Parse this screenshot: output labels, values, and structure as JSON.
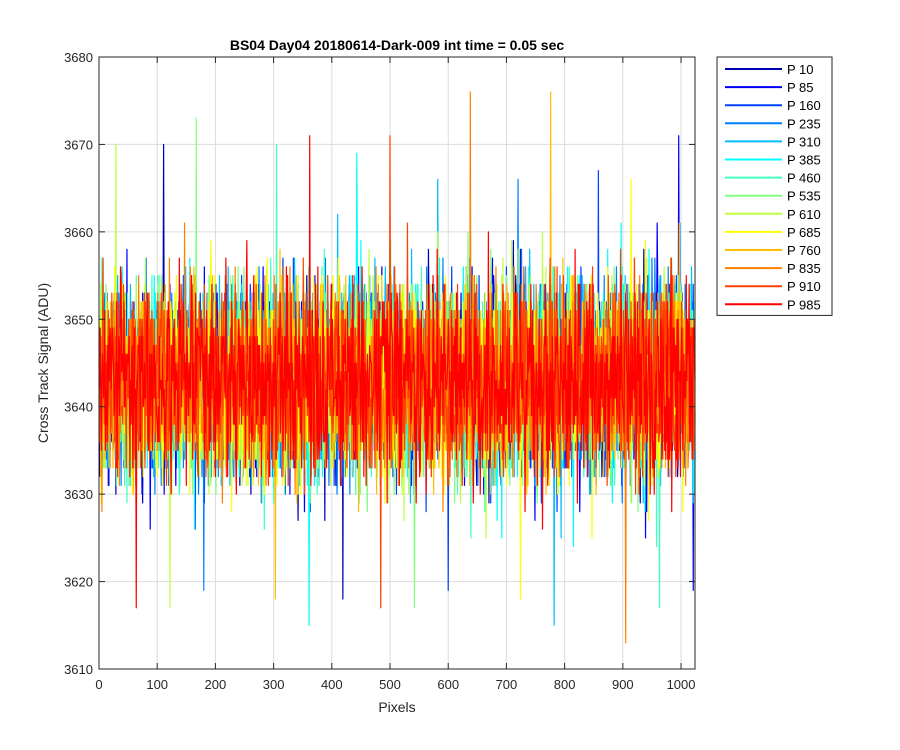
{
  "chart_data": {
    "type": "line",
    "title": "BS04 Day04 20180614-Dark-009 int time = 0.05 sec",
    "xlabel": "Pixels",
    "ylabel": "Cross Track Signal (ADU)",
    "xlim": [
      0,
      1024
    ],
    "ylim": [
      3610,
      3680
    ],
    "x_ticks": [
      0,
      100,
      200,
      300,
      400,
      500,
      600,
      700,
      800,
      900,
      1000
    ],
    "y_ticks": [
      3610,
      3620,
      3630,
      3640,
      3650,
      3660,
      3670,
      3680
    ],
    "grid": true,
    "legend_position": "outside-right",
    "x_range": [
      1,
      1024
    ],
    "series": [
      {
        "name": "P 10",
        "color": "#0000b3",
        "mean": 3643,
        "std": 5.5,
        "min": 3618,
        "max": 3670
      },
      {
        "name": "P 85",
        "color": "#0000ff",
        "mean": 3643,
        "std": 5.5,
        "min": 3619,
        "max": 3671
      },
      {
        "name": "P 160",
        "color": "#0040ff",
        "mean": 3643,
        "std": 5.5,
        "min": 3619,
        "max": 3667
      },
      {
        "name": "P 235",
        "color": "#0080ff",
        "mean": 3643,
        "std": 5.5,
        "min": 3619,
        "max": 3666
      },
      {
        "name": "P 310",
        "color": "#00bfff",
        "mean": 3643,
        "std": 5.5,
        "min": 3615,
        "max": 3666
      },
      {
        "name": "P 385",
        "color": "#00ffff",
        "mean": 3643,
        "std": 5.5,
        "min": 3615,
        "max": 3669
      },
      {
        "name": "P 460",
        "color": "#40ffbf",
        "mean": 3643,
        "std": 5.5,
        "min": 3617,
        "max": 3670
      },
      {
        "name": "P 535",
        "color": "#80ff80",
        "mean": 3643,
        "std": 5.5,
        "min": 3617,
        "max": 3673
      },
      {
        "name": "P 610",
        "color": "#bfff40",
        "mean": 3643,
        "std": 5.5,
        "min": 3617,
        "max": 3670
      },
      {
        "name": "P 685",
        "color": "#ffff00",
        "mean": 3643,
        "std": 5.5,
        "min": 3618,
        "max": 3666
      },
      {
        "name": "P 760",
        "color": "#ffbf00",
        "mean": 3643,
        "std": 5.5,
        "min": 3618,
        "max": 3676
      },
      {
        "name": "P 835",
        "color": "#ff8000",
        "mean": 3643,
        "std": 5.5,
        "min": 3613,
        "max": 3676
      },
      {
        "name": "P 910",
        "color": "#ff4000",
        "mean": 3643,
        "std": 5.5,
        "min": 3617,
        "max": 3671
      },
      {
        "name": "P 985",
        "color": "#ff0000",
        "mean": 3643,
        "std": 5.5,
        "min": 3617,
        "max": 3671
      }
    ]
  }
}
